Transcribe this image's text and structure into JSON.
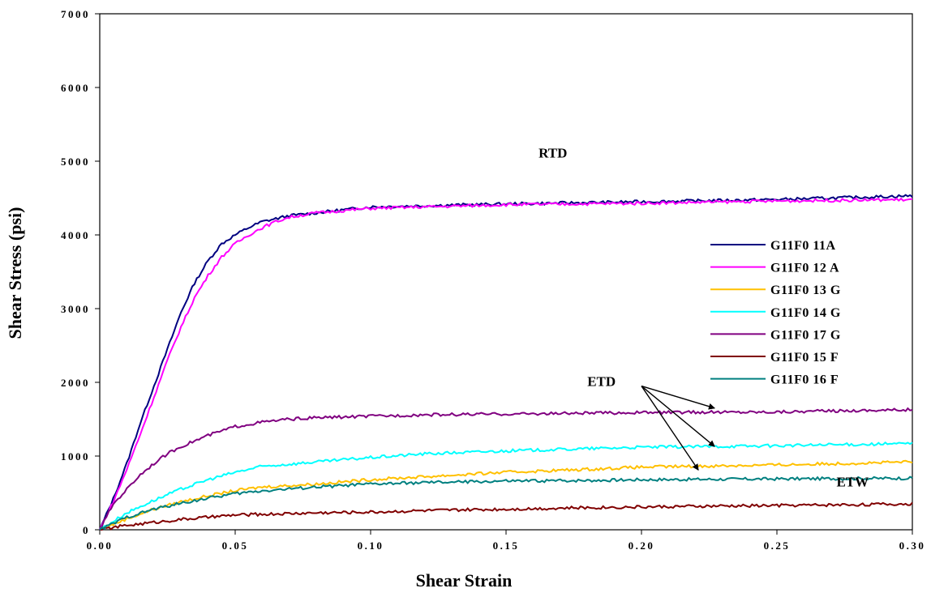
{
  "chart_data": {
    "type": "line",
    "xlabel": "Shear Strain",
    "ylabel": "Shear Stress (psi)",
    "xlim": [
      0,
      0.3
    ],
    "ylim": [
      0,
      7000
    ],
    "x_ticks": [
      0,
      0.05,
      0.1,
      0.15,
      0.2,
      0.25,
      0.3
    ],
    "x_tick_labels": [
      "0.00",
      "0.05",
      "0.10",
      "0.15",
      "0.20",
      "0.25",
      "0.30"
    ],
    "y_ticks": [
      0,
      1000,
      2000,
      3000,
      4000,
      5000,
      6000,
      7000
    ],
    "y_tick_labels": [
      "0",
      "1000",
      "2000",
      "3000",
      "4000",
      "5000",
      "6000",
      "7000"
    ],
    "grid": false,
    "legend_position": "right",
    "series": [
      {
        "name": "G11F0 11A",
        "color": "#000080",
        "x": [
          0,
          0.005,
          0.01,
          0.015,
          0.02,
          0.025,
          0.03,
          0.035,
          0.04,
          0.045,
          0.05,
          0.055,
          0.06,
          0.065,
          0.07,
          0.08,
          0.1,
          0.15,
          0.2,
          0.25,
          0.3
        ],
        "y": [
          0,
          420,
          900,
          1450,
          1950,
          2450,
          2950,
          3350,
          3650,
          3880,
          4000,
          4100,
          4180,
          4220,
          4260,
          4300,
          4380,
          4420,
          4450,
          4480,
          4530
        ]
      },
      {
        "name": "G11F0 12 A",
        "color": "#ff00ff",
        "x": [
          0,
          0.005,
          0.01,
          0.015,
          0.02,
          0.025,
          0.03,
          0.035,
          0.04,
          0.045,
          0.05,
          0.055,
          0.06,
          0.065,
          0.07,
          0.08,
          0.1,
          0.15,
          0.2,
          0.25,
          0.3
        ],
        "y": [
          0,
          380,
          820,
          1300,
          1800,
          2300,
          2750,
          3150,
          3450,
          3700,
          3880,
          4000,
          4100,
          4180,
          4240,
          4300,
          4360,
          4410,
          4430,
          4460,
          4480
        ]
      },
      {
        "name": "G11F0 13 G",
        "color": "#ffc000",
        "x": [
          0,
          0.01,
          0.02,
          0.03,
          0.04,
          0.05,
          0.06,
          0.08,
          0.1,
          0.12,
          0.15,
          0.18,
          0.2,
          0.25,
          0.3
        ],
        "y": [
          0,
          150,
          280,
          380,
          460,
          530,
          580,
          620,
          680,
          720,
          780,
          820,
          850,
          880,
          920
        ]
      },
      {
        "name": "G11F0 14 G",
        "color": "#00ffff",
        "x": [
          0,
          0.01,
          0.02,
          0.03,
          0.04,
          0.05,
          0.06,
          0.08,
          0.1,
          0.12,
          0.15,
          0.18,
          0.2,
          0.25,
          0.3
        ],
        "y": [
          0,
          230,
          400,
          550,
          680,
          780,
          860,
          920,
          980,
          1030,
          1070,
          1100,
          1120,
          1140,
          1170
        ]
      },
      {
        "name": "G11F0 17 G",
        "color": "#800080",
        "x": [
          0,
          0.005,
          0.01,
          0.015,
          0.02,
          0.025,
          0.03,
          0.04,
          0.05,
          0.06,
          0.07,
          0.08,
          0.1,
          0.12,
          0.15,
          0.2,
          0.25,
          0.3
        ],
        "y": [
          0,
          350,
          550,
          750,
          900,
          1030,
          1130,
          1280,
          1400,
          1460,
          1500,
          1520,
          1540,
          1560,
          1570,
          1590,
          1600,
          1630
        ]
      },
      {
        "name": "G11F0 15 F",
        "color": "#800000",
        "x": [
          0,
          0.01,
          0.02,
          0.03,
          0.04,
          0.05,
          0.06,
          0.08,
          0.1,
          0.12,
          0.15,
          0.18,
          0.2,
          0.25,
          0.3
        ],
        "y": [
          0,
          60,
          100,
          140,
          170,
          200,
          210,
          230,
          240,
          260,
          280,
          300,
          310,
          330,
          350
        ]
      },
      {
        "name": "G11F0 16 F",
        "color": "#008080",
        "x": [
          0,
          0.01,
          0.02,
          0.03,
          0.04,
          0.05,
          0.06,
          0.08,
          0.1,
          0.12,
          0.15,
          0.18,
          0.2,
          0.25,
          0.3
        ],
        "y": [
          0,
          170,
          280,
          360,
          430,
          490,
          530,
          580,
          620,
          640,
          660,
          670,
          680,
          690,
          700
        ]
      }
    ],
    "annotations": [
      {
        "text": "RTD",
        "x": 0.162,
        "y": 5050
      },
      {
        "text": "ETD",
        "x": 0.18,
        "y": 1950
      },
      {
        "text": "ETW",
        "x": 0.272,
        "y": 590
      }
    ],
    "arrows": [
      {
        "from_x": 0.2,
        "from_y": 1950,
        "to_x": 0.227,
        "to_y": 1650
      },
      {
        "from_x": 0.2,
        "from_y": 1950,
        "to_x": 0.227,
        "to_y": 1130
      },
      {
        "from_x": 0.2,
        "from_y": 1950,
        "to_x": 0.221,
        "to_y": 810
      }
    ]
  }
}
